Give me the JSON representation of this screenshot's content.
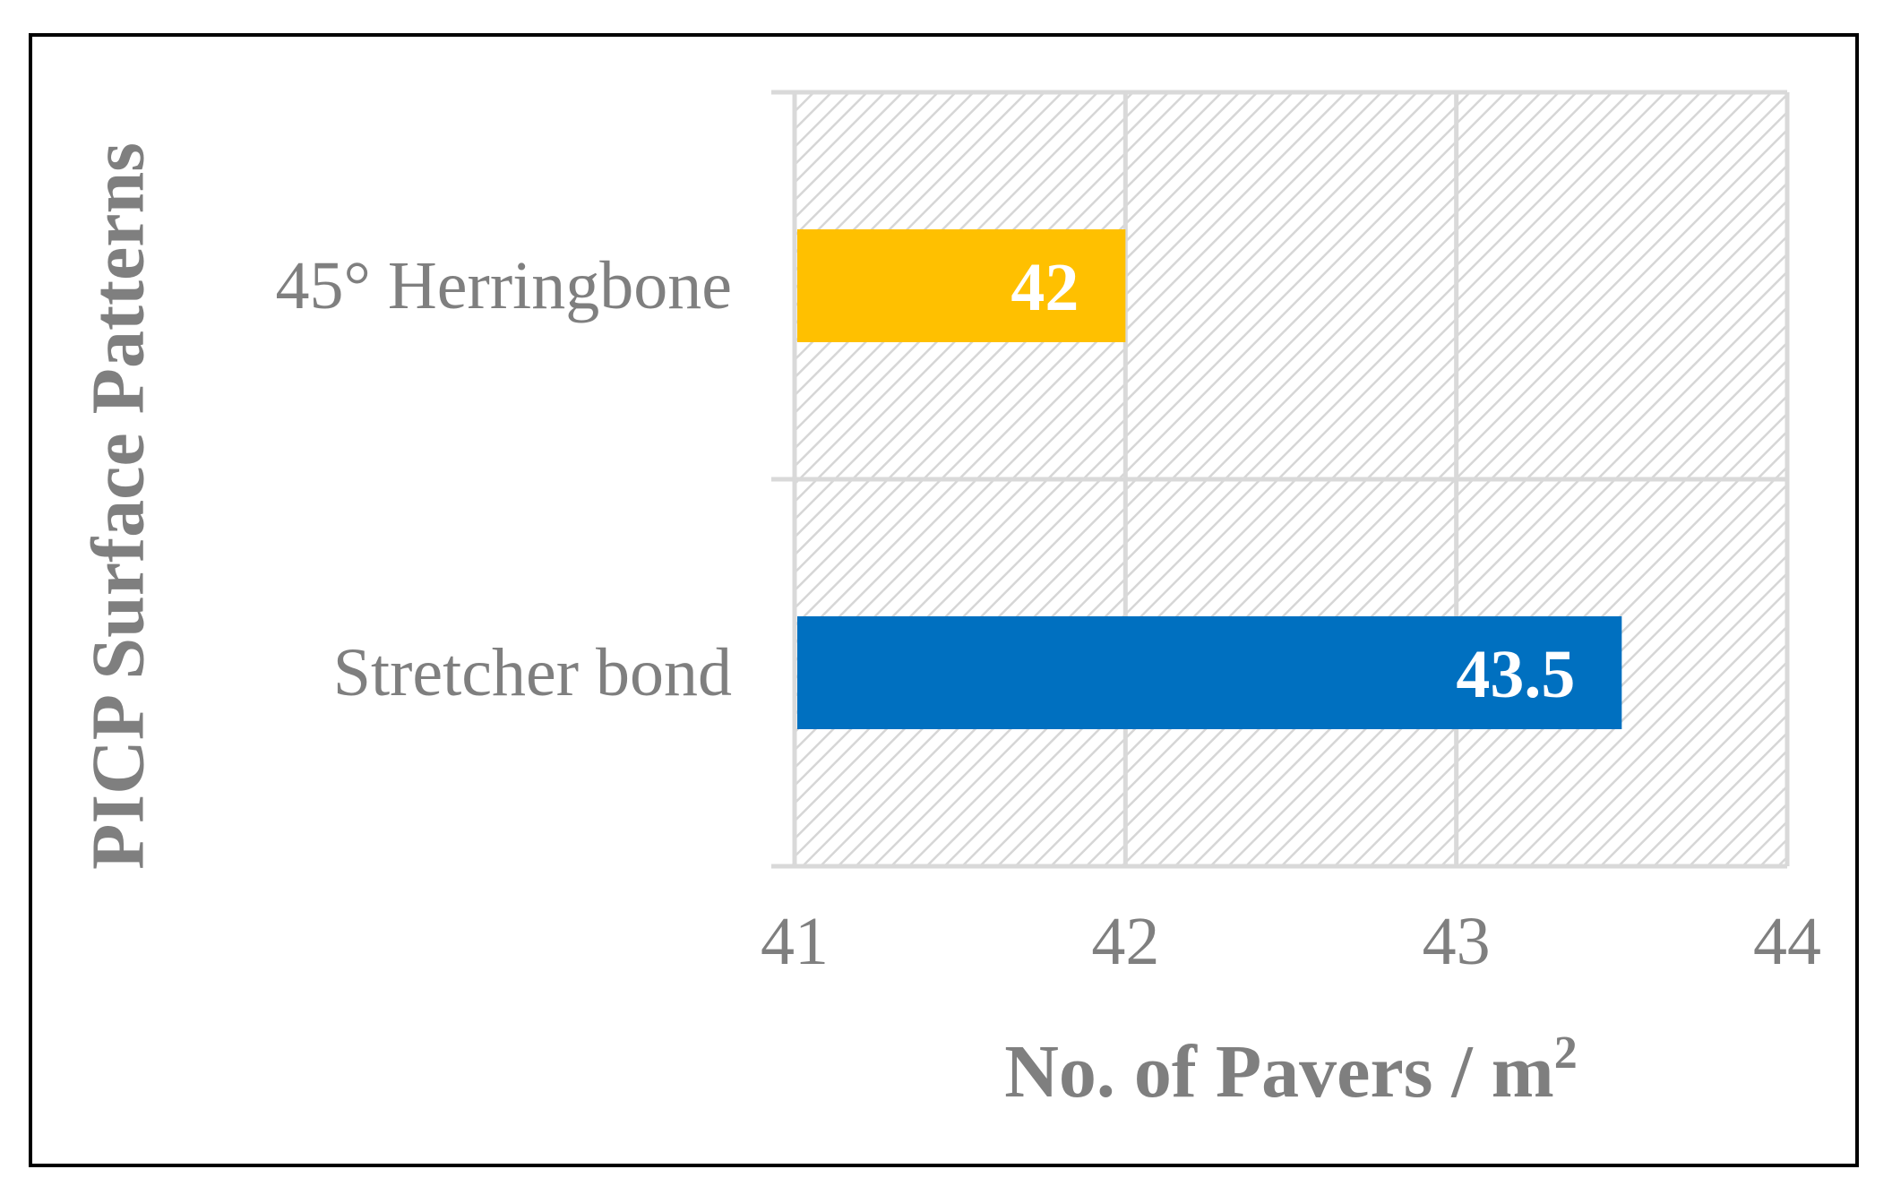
{
  "chart_data": {
    "type": "bar",
    "orientation": "horizontal",
    "categories": [
      "45° Herringbone",
      "Stretcher bond"
    ],
    "values": [
      42,
      43.5
    ],
    "data_labels": [
      "42",
      "43.5"
    ],
    "bar_colors": [
      "#FFC000",
      "#0070C0"
    ],
    "xlabel": "No. of Pavers / m",
    "xlabel_superscript": "2",
    "ylabel": "PICP Surface Patterns",
    "xlim": [
      41,
      44
    ],
    "xticks": [
      "41",
      "42",
      "43",
      "44"
    ],
    "grid": true,
    "plot_background": "hatched light gray",
    "colors": {
      "text": "#7F7F7F",
      "grid": "#D9D9D9",
      "hatch": "#D6D6D6",
      "data_label": "#FFFFFF",
      "frame": "#000000"
    }
  }
}
